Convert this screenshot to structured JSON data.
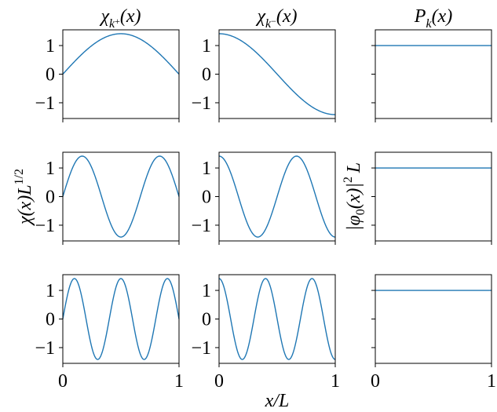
{
  "chart_data": {
    "type": "line",
    "layout": "grid-3x3",
    "column_titles": [
      "χ_{k+}(x)",
      "χ_{k−}(x)",
      "P_k(x)"
    ],
    "xlabel": "x/L",
    "ylabel_left": "χ(x)L^{1/2}",
    "ylabel_right": "|φ0(x)|^2 L",
    "x_ticks": [
      0,
      1
    ],
    "y_ticks": [
      -1,
      0,
      1
    ],
    "xlim": [
      0,
      1
    ],
    "ylim": [
      -1.55,
      1.55
    ],
    "line_color": "#1f77b4",
    "panels": [
      {
        "row": 0,
        "col": 0,
        "series": "chi_plus",
        "function": "sqrt(2)*sin(1*pi*x)",
        "k": 1
      },
      {
        "row": 0,
        "col": 1,
        "series": "chi_minus",
        "function": "sqrt(2)*cos(1*pi*x)",
        "k": 1
      },
      {
        "row": 0,
        "col": 2,
        "series": "P",
        "function": "1",
        "k": 1
      },
      {
        "row": 1,
        "col": 0,
        "series": "chi_plus",
        "function": "sqrt(2)*sin(3*pi*x)",
        "k": 3
      },
      {
        "row": 1,
        "col": 1,
        "series": "chi_minus",
        "function": "sqrt(2)*cos(3*pi*x)",
        "k": 3
      },
      {
        "row": 1,
        "col": 2,
        "series": "P",
        "function": "1",
        "k": 3
      },
      {
        "row": 2,
        "col": 0,
        "series": "chi_plus",
        "function": "sqrt(2)*sin(5*pi*x)",
        "k": 5
      },
      {
        "row": 2,
        "col": 1,
        "series": "chi_minus",
        "function": "sqrt(2)*cos(5*pi*x)",
        "k": 5
      },
      {
        "row": 2,
        "col": 2,
        "series": "P",
        "function": "1",
        "k": 5
      }
    ]
  }
}
